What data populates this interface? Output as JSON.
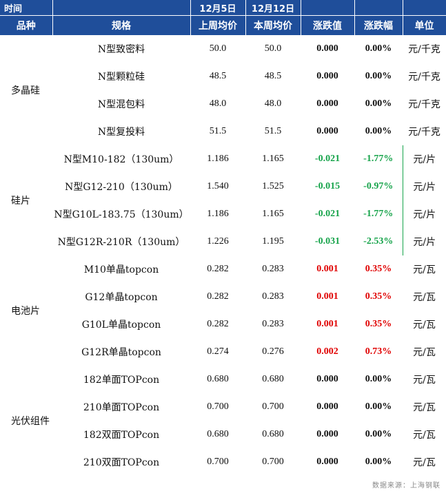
{
  "header": {
    "time_label": "时间",
    "date_prev": "12月5日",
    "date_curr": "12月12日",
    "col_category": "品种",
    "col_spec": "规格",
    "col_prev_avg": "上周均价",
    "col_curr_avg": "本周均价",
    "col_change": "涨跌值",
    "col_pct": "涨跌幅",
    "col_unit": "单位"
  },
  "groups": [
    {
      "category": "多晶硅",
      "rows": [
        {
          "spec": "N型致密料",
          "prev": "50.0",
          "curr": "50.0",
          "change": "0.000",
          "pct": "0.00%",
          "unit": "元/千克",
          "dir": "flat"
        },
        {
          "spec": "N型颗粒硅",
          "prev": "48.5",
          "curr": "48.5",
          "change": "0.000",
          "pct": "0.00%",
          "unit": "元/千克",
          "dir": "flat"
        },
        {
          "spec": "N型混包料",
          "prev": "48.0",
          "curr": "48.0",
          "change": "0.000",
          "pct": "0.00%",
          "unit": "元/千克",
          "dir": "flat"
        },
        {
          "spec": "N型复投料",
          "prev": "51.5",
          "curr": "51.5",
          "change": "0.000",
          "pct": "0.00%",
          "unit": "元/千克",
          "dir": "flat"
        }
      ]
    },
    {
      "category": "硅片",
      "rows": [
        {
          "spec": "N型M10-182（130um）",
          "prev": "1.186",
          "curr": "1.165",
          "change": "-0.021",
          "pct": "-1.77%",
          "unit": "元/片",
          "dir": "down"
        },
        {
          "spec": "N型G12-210（130um）",
          "prev": "1.540",
          "curr": "1.525",
          "change": "-0.015",
          "pct": "-0.97%",
          "unit": "元/片",
          "dir": "down"
        },
        {
          "spec": "N型G10L-183.75（130um）",
          "prev": "1.186",
          "curr": "1.165",
          "change": "-0.021",
          "pct": "-1.77%",
          "unit": "元/片",
          "dir": "down"
        },
        {
          "spec": "N型G12R-210R（130um）",
          "prev": "1.226",
          "curr": "1.195",
          "change": "-0.031",
          "pct": "-2.53%",
          "unit": "元/片",
          "dir": "down"
        }
      ]
    },
    {
      "category": "电池片",
      "rows": [
        {
          "spec": "M10单晶topcon",
          "prev": "0.282",
          "curr": "0.283",
          "change": "0.001",
          "pct": "0.35%",
          "unit": "元/瓦",
          "dir": "up"
        },
        {
          "spec": "G12单晶topcon",
          "prev": "0.282",
          "curr": "0.283",
          "change": "0.001",
          "pct": "0.35%",
          "unit": "元/瓦",
          "dir": "up"
        },
        {
          "spec": "G10L单晶topcon",
          "prev": "0.282",
          "curr": "0.283",
          "change": "0.001",
          "pct": "0.35%",
          "unit": "元/瓦",
          "dir": "up"
        },
        {
          "spec": "G12R单晶topcon",
          "prev": "0.274",
          "curr": "0.276",
          "change": "0.002",
          "pct": "0.73%",
          "unit": "元/瓦",
          "dir": "up"
        }
      ]
    },
    {
      "category": "光伏组件",
      "rows": [
        {
          "spec": "182单面TOPcon",
          "prev": "0.680",
          "curr": "0.680",
          "change": "0.000",
          "pct": "0.00%",
          "unit": "元/瓦",
          "dir": "flat"
        },
        {
          "spec": "210单面TOPcon",
          "prev": "0.700",
          "curr": "0.700",
          "change": "0.000",
          "pct": "0.00%",
          "unit": "元/瓦",
          "dir": "flat"
        },
        {
          "spec": "182双面TOPcon",
          "prev": "0.680",
          "curr": "0.680",
          "change": "0.000",
          "pct": "0.00%",
          "unit": "元/瓦",
          "dir": "flat"
        },
        {
          "spec": "210双面TOPcon",
          "prev": "0.700",
          "curr": "0.700",
          "change": "0.000",
          "pct": "0.00%",
          "unit": "元/瓦",
          "dir": "flat"
        }
      ]
    }
  ],
  "source": "数据来源：上海钢联",
  "colors": {
    "header_bg": "#1f4e9a",
    "up": "#e00000",
    "down": "#16a34a"
  }
}
